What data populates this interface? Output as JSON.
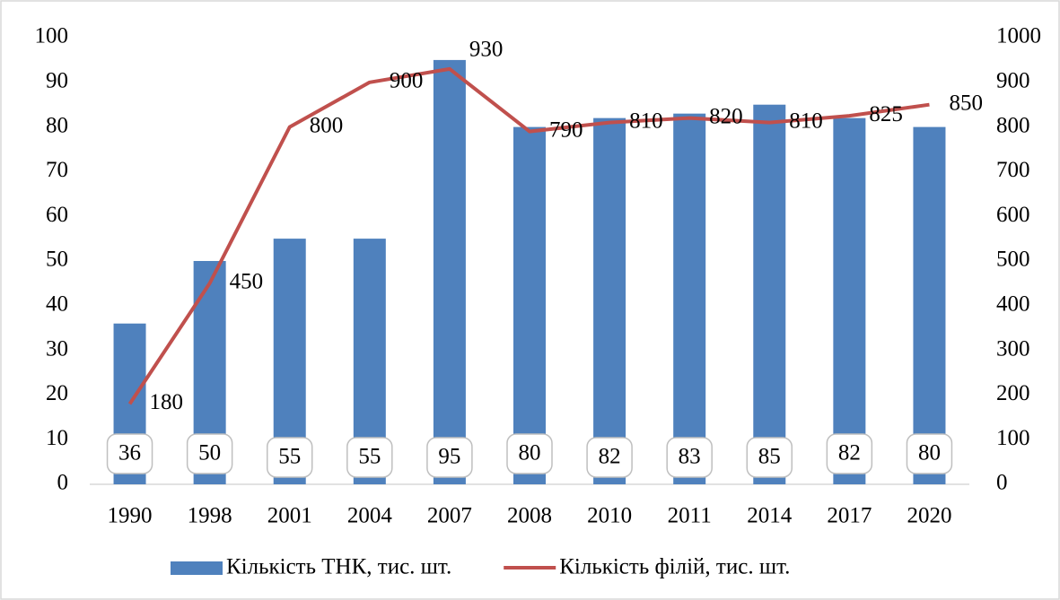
{
  "chart_data": {
    "type": "combo",
    "categories": [
      "1990",
      "1998",
      "2001",
      "2004",
      "2007",
      "2008",
      "2010",
      "2011",
      "2014",
      "2017",
      "2020"
    ],
    "series": [
      {
        "name": "Кількість ТНК, тис. шт.",
        "type": "bar",
        "color": "#4f81bd",
        "values": [
          36,
          50,
          55,
          55,
          95,
          80,
          82,
          83,
          85,
          82,
          80
        ]
      },
      {
        "name": "Кількість філій, тис. шт.",
        "type": "line",
        "axis": "y2",
        "color": "#c0504d",
        "values": [
          180,
          450,
          800,
          900,
          930,
          790,
          810,
          820,
          810,
          825,
          850
        ]
      }
    ],
    "ylim": [
      0,
      100
    ],
    "yticks": [
      0,
      10,
      20,
      30,
      40,
      50,
      60,
      70,
      80,
      90,
      100
    ],
    "y2lim": [
      0,
      1000
    ],
    "y2ticks": [
      0,
      100,
      200,
      300,
      400,
      500,
      600,
      700,
      800,
      900,
      1000
    ],
    "grid": false,
    "legend": "bottom"
  }
}
